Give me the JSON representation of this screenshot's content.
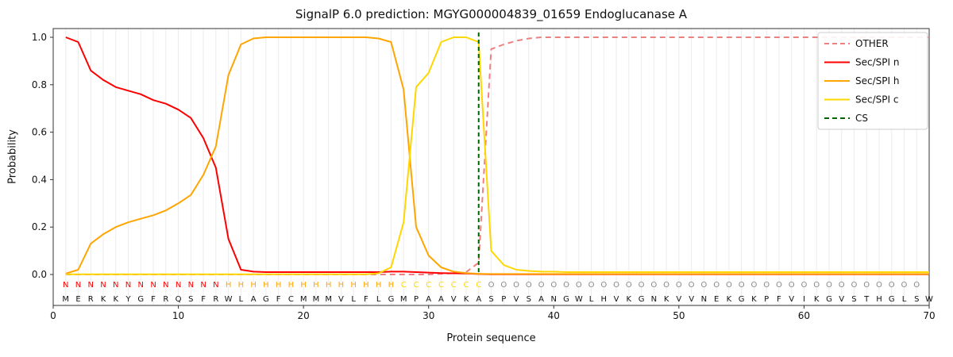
{
  "title": "SignalP 6.0 prediction: MGYG000004839_01659 Endoglucanase A",
  "chart_data": {
    "type": "line",
    "title": "SignalP 6.0 prediction: MGYG000004839_01659 Endoglucanase A",
    "xlabel": "Protein sequence",
    "ylabel": "Probability",
    "xlim": [
      0,
      70
    ],
    "ylim": [
      0,
      1.05
    ],
    "x_ticks": [
      0,
      10,
      20,
      30,
      40,
      50,
      60,
      70
    ],
    "y_ticks": [
      0,
      0.2,
      0.4,
      0.6,
      0.8,
      1.0
    ],
    "grid": "vertical line per residue, light gray",
    "legend_position": "upper right",
    "cs_position": 34,
    "cs": {
      "name": "CS",
      "color": "#006400",
      "style": "dashed"
    },
    "sequence": "MERKKYGFRQSFRWLAGFCMMMVLFLGMPAAVKASPVSANGWLHVKGNKVVNEKGKPFVIKGVSTHGLSW",
    "region_labels": "NNNNNNNNNNNNNHHHHHHHHHHHHHHCCCCCCCOOOOOOOOOOOOOOOOOOOOOOOOOOOOOOOOOOO",
    "series": [
      {
        "name": "OTHER",
        "color": "#f08080",
        "style": "dashed",
        "values": [
          0,
          0,
          0,
          0,
          0,
          0,
          0,
          0,
          0,
          0,
          0,
          0,
          0,
          0,
          0,
          0,
          0,
          0,
          0,
          0,
          0,
          0,
          0,
          0,
          0,
          0,
          0,
          0,
          0,
          0,
          0.003,
          0.005,
          0.01,
          0.05,
          0.95,
          0.97,
          0.985,
          0.995,
          1,
          1,
          1,
          1,
          1,
          1,
          1,
          1,
          1,
          1,
          1,
          1,
          1,
          1,
          1,
          1,
          1,
          1,
          1,
          1,
          1,
          1,
          1,
          1,
          1,
          1,
          1,
          1,
          1,
          1,
          1,
          1
        ]
      },
      {
        "name": "Sec/SPI n",
        "color": "#ff0000",
        "style": "solid",
        "values": [
          1,
          0.98,
          0.86,
          0.82,
          0.79,
          0.775,
          0.76,
          0.735,
          0.72,
          0.695,
          0.66,
          0.575,
          0.45,
          0.15,
          0.02,
          0.012,
          0.01,
          0.01,
          0.01,
          0.01,
          0.01,
          0.01,
          0.01,
          0.01,
          0.01,
          0.01,
          0.012,
          0.012,
          0.01,
          0.008,
          0.006,
          0.005,
          0.004,
          0.002,
          0.001,
          0.001,
          0.001,
          0.001,
          0.001,
          0.001,
          0.001,
          0.001,
          0.001,
          0.001,
          0.001,
          0.001,
          0.001,
          0.001,
          0.001,
          0.001,
          0.001,
          0.001,
          0.001,
          0.001,
          0.001,
          0.001,
          0.001,
          0.001,
          0.001,
          0.001,
          0.001,
          0.001,
          0.001,
          0.001,
          0.001,
          0.001,
          0.001,
          0.001,
          0.001,
          0.001
        ]
      },
      {
        "name": "Sec/SPI h",
        "color": "#ffa500",
        "style": "solid",
        "values": [
          0.004,
          0.02,
          0.13,
          0.17,
          0.2,
          0.22,
          0.235,
          0.25,
          0.27,
          0.3,
          0.335,
          0.42,
          0.54,
          0.84,
          0.97,
          0.995,
          1,
          1,
          1,
          1,
          1,
          1,
          1,
          1,
          1,
          0.995,
          0.98,
          0.78,
          0.2,
          0.08,
          0.03,
          0.012,
          0.006,
          0.003,
          0.002,
          0.002,
          0.002,
          0.002,
          0.002,
          0.002,
          0.002,
          0.002,
          0.002,
          0.002,
          0.002,
          0.002,
          0.002,
          0.002,
          0.002,
          0.002,
          0.002,
          0.002,
          0.002,
          0.002,
          0.002,
          0.002,
          0.002,
          0.002,
          0.002,
          0.002,
          0.002,
          0.002,
          0.002,
          0.002,
          0.002,
          0.002,
          0.002,
          0.002,
          0.002,
          0.002
        ]
      },
      {
        "name": "Sec/SPI c",
        "color": "#ffd700",
        "style": "solid",
        "values": [
          0.001,
          0.001,
          0.001,
          0.001,
          0.001,
          0.001,
          0.001,
          0.001,
          0.001,
          0.001,
          0.001,
          0.001,
          0.001,
          0.001,
          0.001,
          0.001,
          0.001,
          0.001,
          0.001,
          0.001,
          0.001,
          0.001,
          0.001,
          0.001,
          0.001,
          0.005,
          0.03,
          0.22,
          0.79,
          0.85,
          0.98,
          1,
          1,
          0.98,
          0.1,
          0.04,
          0.02,
          0.015,
          0.012,
          0.012,
          0.01,
          0.01,
          0.01,
          0.01,
          0.01,
          0.01,
          0.01,
          0.01,
          0.01,
          0.01,
          0.01,
          0.01,
          0.01,
          0.01,
          0.01,
          0.01,
          0.01,
          0.01,
          0.01,
          0.01,
          0.01,
          0.01,
          0.01,
          0.01,
          0.01,
          0.01,
          0.01,
          0.01,
          0.01,
          0.01
        ]
      }
    ]
  },
  "region_colors": {
    "N": "#ff0000",
    "H": "#ffa500",
    "C": "#ffd700",
    "O": "#8a8a8a"
  },
  "residue_color": "#111111",
  "grid_color": "#ececec",
  "axis_color": "#333333"
}
